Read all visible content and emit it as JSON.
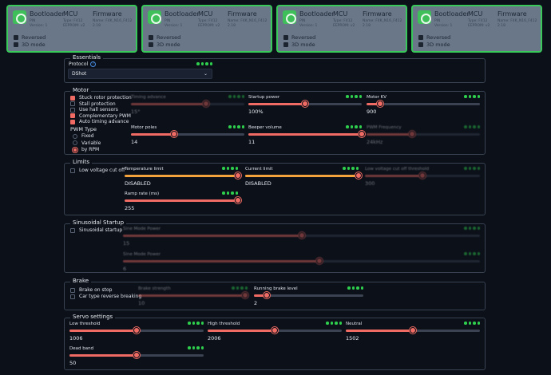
{
  "esc_cards": [
    {
      "bootloader": "Bootloader",
      "bl_pin": "PIN",
      "bl_version": "Version: 1",
      "mcu": "MCU",
      "mcu_signature": "Type: F412",
      "mcu_eeprom": "EEPROM: v2",
      "firmware": "Firmware",
      "fw_name": "Name: F4K_N16_F412",
      "fw_version": "2.18",
      "reversed": "Reversed",
      "mode3d": "3D mode"
    },
    {
      "bootloader": "Bootloader",
      "bl_pin": "PIN",
      "bl_version": "Version: 1",
      "mcu": "MCU",
      "mcu_signature": "Type: F412",
      "mcu_eeprom": "EEPROM: v2",
      "firmware": "Firmware",
      "fw_name": "Name: F4K_N16_F412",
      "fw_version": "2.18",
      "reversed": "Reversed",
      "mode3d": "3D mode"
    },
    {
      "bootloader": "Bootloader",
      "bl_pin": "PIN",
      "bl_version": "Version: 1",
      "mcu": "MCU",
      "mcu_signature": "Type: F412",
      "mcu_eeprom": "EEPROM: v2",
      "firmware": "Firmware",
      "fw_name": "Name: F4K_N16_F412",
      "fw_version": "2.18",
      "reversed": "Reversed",
      "mode3d": "3D mode"
    },
    {
      "bootloader": "Bootloader",
      "bl_pin": "PIN",
      "bl_version": "Version: 1",
      "mcu": "MCU",
      "mcu_signature": "Type: F412",
      "mcu_eeprom": "EEPROM: v2",
      "firmware": "Firmware",
      "fw_name": "Name: F4K_N16_F412",
      "fw_version": "2.18",
      "reversed": "Reversed",
      "mode3d": "3D mode"
    }
  ],
  "essentials": {
    "title": "Essentials",
    "protocol_label": "Protocol",
    "protocol_value": "DShot"
  },
  "motor": {
    "title": "Motor",
    "checks": [
      {
        "label": "Stuck rotor protection",
        "checked": true
      },
      {
        "label": "Stall protection",
        "checked": false
      },
      {
        "label": "Use hall sensors",
        "checked": false
      },
      {
        "label": "Complementary PWM",
        "checked": true
      },
      {
        "label": "Auto timing advance",
        "checked": true
      }
    ],
    "pwm_title": "PWM Type",
    "pwm_options": [
      {
        "label": "Fixed",
        "checked": false
      },
      {
        "label": "Variable",
        "checked": false
      },
      {
        "label": "by RPM",
        "checked": true
      }
    ],
    "timing_advance": {
      "label": "Timing advance",
      "value": "15°",
      "level": 0.66
    },
    "startup_power": {
      "label": "Startup power",
      "value": "100%",
      "level": 0.5
    },
    "motor_kv": {
      "label": "Motor KV",
      "value": "900",
      "level": 0.12
    },
    "motor_poles": {
      "label": "Motor poles",
      "value": "14",
      "level": 0.38
    },
    "beeper_volume": {
      "label": "Beeper volume",
      "value": "11",
      "level": 1.0
    },
    "pwm_frequency": {
      "label": "PWM Frequency",
      "value": "24kHz",
      "level": 0.4
    }
  },
  "limits": {
    "title": "Limits",
    "low_voltage_cutoff": "Low voltage cut off",
    "temperature_limit": {
      "label": "Temperature limit",
      "value": "DISABLED",
      "level": 1.0
    },
    "current_limit": {
      "label": "Current limit",
      "value": "DISABLED",
      "level": 1.0
    },
    "low_voltage_threshold": {
      "label": "Low voltage cut off threshold",
      "value": "300",
      "level": 0.5
    },
    "ramp_rate": {
      "label": "Ramp rate (ms)",
      "value": "255",
      "level": 1.0
    }
  },
  "sinusoidal": {
    "title": "Sinusoidal Startup",
    "check_label": "Sinusoidal startup",
    "power1": {
      "label": "Sine Mode Power",
      "value": "15",
      "level": 0.5
    },
    "power2": {
      "label": "Sine Mode Power",
      "value": "6",
      "level": 0.55
    }
  },
  "brake": {
    "title": "Brake",
    "brake_on_stop": "Brake on stop",
    "car_type": "Car type reverse breaking",
    "brake_strength": {
      "label": "Brake strength",
      "value": "10",
      "level": 0.98
    },
    "running_brake": {
      "label": "Running brake level",
      "value": "2",
      "level": 0.12
    }
  },
  "servo": {
    "title": "Servo settings",
    "low_threshold": {
      "label": "Low threshold",
      "value": "1006",
      "level": 0.5
    },
    "high_threshold": {
      "label": "High threshold",
      "value": "2006",
      "level": 0.5
    },
    "neutral": {
      "label": "Neutral",
      "value": "1502",
      "level": 0.5
    },
    "dead_band": {
      "label": "Dead band",
      "value": "50",
      "level": 0.5
    }
  },
  "colors": {
    "accent": "#f06b63",
    "orange": "#f3a23c",
    "green": "#2fcf4e",
    "card": "#6a7788"
  }
}
